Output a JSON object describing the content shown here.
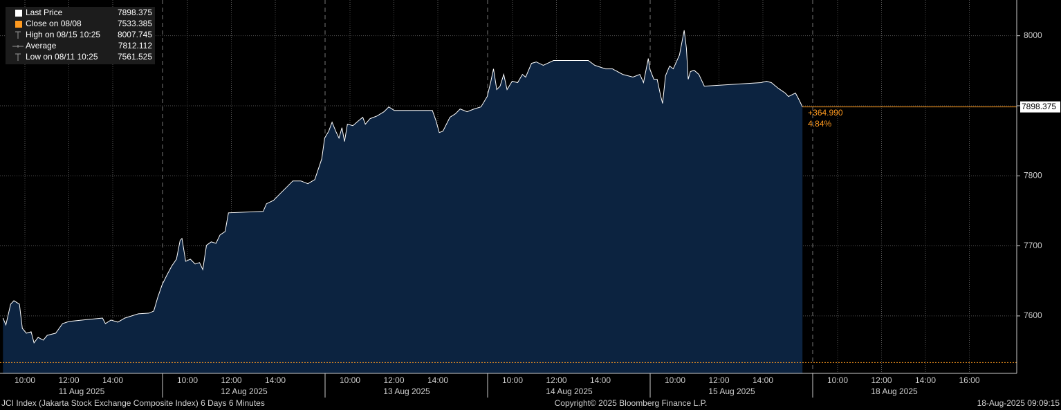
{
  "chart_data": {
    "type": "area",
    "series": [
      {
        "name": "Last Price",
        "color": "#ffffff",
        "fill": "#0c2340",
        "values": [
          7597.0,
          7587.2,
          7616.8,
          7621.7,
          7616.8,
          7582.2,
          7575.3,
          7577.3,
          7561.525,
          7569.4,
          7565.4,
          7572.3,
          7575.3,
          7589.1,
          7592.1,
          7597.0,
          7589.1,
          7594.1,
          7591.1,
          7597.0,
          7600.0,
          7603.0,
          7604.0,
          7606.9,
          7626.7,
          7644.5,
          7656.3,
          7671.1,
          7681.0,
          7707.7,
          7710.7,
          7678.0,
          7681.0,
          7674.1,
          7676.1,
          7666.2,
          7700.8,
          7705.7,
          7703.7,
          7715.6,
          7720.5,
          7747.2,
          7749.2,
          7760.1,
          7765.0,
          7774.9,
          7784.8,
          7792.7,
          7792.7,
          7788.7,
          7794.6,
          7824.3,
          7853.9,
          7863.8,
          7876.6,
          7863.8,
          7853.9,
          7868.7,
          7849.0,
          7873.7,
          7871.7,
          7878.6,
          7883.6,
          7873.7,
          7881.6,
          7885.5,
          7891.5,
          7898.4,
          7893.4,
          7893.4,
          7893.4,
          7878.6,
          7861.8,
          7863.8,
          7883.6,
          7888.5,
          7895.4,
          7891.5,
          7895.4,
          7898.4,
          7913.2,
          7933.0,
          7952.7,
          7923.1,
          7928.0,
          7944.8,
          7923.1,
          7935.0,
          7933.0,
          7944.8,
          7940.9,
          7960.6,
          7962.6,
          7957.7,
          7964.6,
          7964.6,
          7957.7,
          7952.7,
          7952.7,
          7944.8,
          7940.9,
          7944.8,
          7933.0,
          7967.5,
          7952.7,
          7937.9,
          7937.9,
          7913.2,
          7903.3,
          7942.8,
          7956.7,
          7952.7,
          7972.5,
          8007.745,
          7982.4,
          7937.9,
          7948.8,
          7950.7,
          7944.8,
          7928.0,
          7933.0,
          7935.0,
          7933.0,
          7925.0,
          7918.1,
          7913.2,
          7918.1,
          7908.3,
          7898.375
        ]
      }
    ],
    "x": [
      "11 Aug 2025 09:00",
      "11 Aug 2025 09:08",
      "11 Aug 2025 09:21",
      "11 Aug 2025 09:30",
      "11 Aug 2025 09:45",
      "11 Aug 2025 09:53",
      "11 Aug 2025 10:04",
      "11 Aug 2025 10:17",
      "11 Aug 2025 10:25",
      "11 Aug 2025 10:36",
      "11 Aug 2025 10:50",
      "11 Aug 2025 11:01",
      "11 Aug 2025 11:24",
      "11 Aug 2025 11:43",
      "11 Aug 2025 12:01",
      "11 Aug 2025 13:32",
      "11 Aug 2025 13:40",
      "11 Aug 2025 13:55",
      "11 Aug 2025 14:14",
      "11 Aug 2025 14:33",
      "11 Aug 2025 14:52",
      "11 Aug 2025 15:10",
      "11 Aug 2025 15:39",
      "11 Aug 2025 15:52",
      "11 Aug 2025 16:03",
      "11 Aug 2025 16:15",
      "12 Aug 2025 09:02",
      "12 Aug 2025 09:17",
      "12 Aug 2025 09:30",
      "12 Aug 2025 09:40",
      "12 Aug 2025 09:45",
      "12 Aug 2025 09:55",
      "12 Aug 2025 10:08",
      "12 Aug 2025 10:21",
      "12 Aug 2025 10:33",
      "12 Aug 2025 10:42",
      "12 Aug 2025 10:52",
      "12 Aug 2025 11:05",
      "12 Aug 2025 11:18",
      "12 Aug 2025 11:29",
      "12 Aug 2025 11:43",
      "12 Aug 2025 11:52",
      "12 Aug 2025 13:27",
      "12 Aug 2025 13:36",
      "12 Aug 2025 13:55",
      "12 Aug 2025 14:14",
      "12 Aug 2025 14:33",
      "12 Aug 2025 14:48",
      "12 Aug 2025 15:10",
      "12 Aug 2025 15:29",
      "12 Aug 2025 15:48",
      "12 Aug 2025 16:07",
      "12 Aug 2025 16:15",
      "13 Aug 2025 09:02",
      "13 Aug 2025 09:11",
      "13 Aug 2025 09:21",
      "13 Aug 2025 09:30",
      "13 Aug 2025 09:38",
      "13 Aug 2025 09:45",
      "13 Aug 2025 09:53",
      "13 Aug 2025 10:08",
      "13 Aug 2025 10:23",
      "13 Aug 2025 10:35",
      "13 Aug 2025 10:42",
      "13 Aug 2025 10:55",
      "13 Aug 2025 11:14",
      "13 Aug 2025 11:33",
      "13 Aug 2025 11:46",
      "13 Aug 2025 12:01",
      "13 Aug 2025 12:58",
      "13 Aug 2025 13:45",
      "13 Aug 2025 13:55",
      "13 Aug 2025 14:04",
      "13 Aug 2025 14:14",
      "13 Aug 2025 14:33",
      "13 Aug 2025 14:48",
      "13 Aug 2025 15:01",
      "13 Aug 2025 15:20",
      "13 Aug 2025 15:39",
      "13 Aug 2025 15:58",
      "13 Aug 2025 16:15",
      "14 Aug 2025 09:00",
      "14 Aug 2025 09:08",
      "14 Aug 2025 09:17",
      "14 Aug 2025 09:26",
      "14 Aug 2025 09:36",
      "14 Aug 2025 09:45",
      "14 Aug 2025 09:59",
      "14 Aug 2025 10:14",
      "14 Aug 2025 10:27",
      "14 Aug 2025 10:36",
      "14 Aug 2025 10:52",
      "14 Aug 2025 11:05",
      "14 Aug 2025 11:24",
      "14 Aug 2025 11:52",
      "14 Aug 2025 13:27",
      "14 Aug 2025 13:45",
      "14 Aug 2025 14:14",
      "14 Aug 2025 14:33",
      "14 Aug 2025 15:01",
      "14 Aug 2025 15:29",
      "14 Aug 2025 15:48",
      "14 Aug 2025 15:58",
      "14 Aug 2025 16:11",
      "14 Aug 2025 16:15",
      "15 Aug 2025 09:02",
      "15 Aug 2025 09:11",
      "15 Aug 2025 09:21",
      "15 Aug 2025 09:26",
      "15 Aug 2025 09:34",
      "15 Aug 2025 09:45",
      "15 Aug 2025 09:55",
      "15 Aug 2025 10:12",
      "15 Aug 2025 10:25",
      "15 Aug 2025 10:31",
      "15 Aug 2025 10:36",
      "15 Aug 2025 10:42",
      "15 Aug 2025 10:52",
      "15 Aug 2025 11:05",
      "15 Aug 2025 11:20",
      "15 Aug 2025 13:55",
      "15 Aug 2025 14:10",
      "15 Aug 2025 14:23",
      "15 Aug 2025 14:42",
      "15 Aug 2025 15:01",
      "15 Aug 2025 15:10",
      "15 Aug 2025 15:29",
      "15 Aug 2025 15:39",
      "15 Aug 2025 15:48"
    ],
    "days": [
      {
        "label": "11 Aug 2025",
        "ticks": [
          "10:00",
          "12:00",
          "14:00"
        ]
      },
      {
        "label": "12 Aug 2025",
        "ticks": [
          "10:00",
          "12:00",
          "14:00"
        ]
      },
      {
        "label": "13 Aug 2025",
        "ticks": [
          "10:00",
          "12:00",
          "14:00"
        ]
      },
      {
        "label": "14 Aug 2025",
        "ticks": [
          "10:00",
          "12:00",
          "14:00"
        ]
      },
      {
        "label": "15 Aug 2025",
        "ticks": [
          "10:00",
          "12:00",
          "14:00"
        ]
      },
      {
        "label": "18 Aug 2025",
        "ticks": [
          "10:00",
          "12:00",
          "14:00",
          "16:00"
        ]
      }
    ],
    "ylim": [
      7518,
      8051
    ],
    "yticks": [
      7600,
      7700,
      7800,
      7900,
      8000
    ],
    "grid": true,
    "stats": [
      {
        "label": "Close on 08/08",
        "value": 7533.385,
        "color": "#ff9a1f"
      },
      {
        "label": "High on 08/15 10:25",
        "value": 8007.745
      },
      {
        "label": "Average",
        "value": 7812.112
      },
      {
        "label": "Low on 08/11 10:25",
        "value": 7561.525
      }
    ],
    "annotations": {
      "change": "+364.990",
      "change_pct": "4.84%"
    },
    "footer": {
      "left": "JCI Index (Jakarta Stock Exchange Composite Index) 6 Days 6 Minutes",
      "center": "Copyright© 2025 Bloomberg Finance L.P.",
      "right": "18-Aug-2025 09:09:15"
    }
  }
}
